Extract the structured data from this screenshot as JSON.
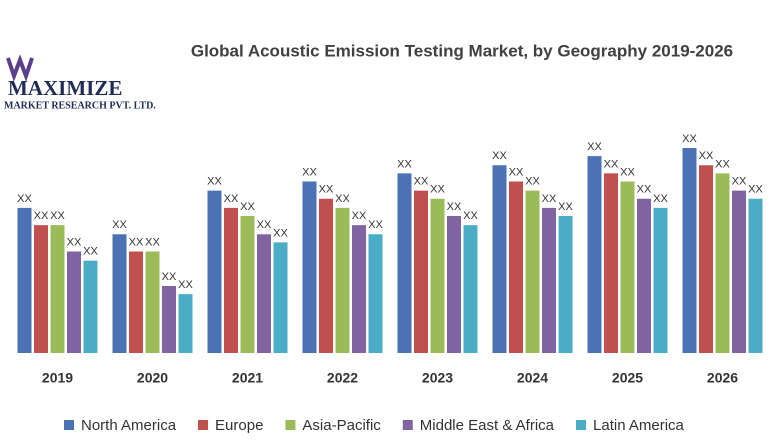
{
  "logo": {
    "name": "MAXIMIZE",
    "tagline": "MARKET RESEARCH PVT. LTD."
  },
  "chart_data": {
    "type": "bar",
    "title": "Global Acoustic Emission Testing Market, by Geography 2019-2026",
    "categories": [
      "2019",
      "2020",
      "2021",
      "2022",
      "2023",
      "2024",
      "2025",
      "2026"
    ],
    "series": [
      {
        "name": "North America",
        "color": "#4a72b5",
        "values": [
          143,
          117,
          160,
          169,
          177,
          185,
          194,
          202
        ],
        "value_labels": [
          "XX",
          "XX",
          "XX",
          "XX",
          "XX",
          "XX",
          "XX",
          "XX"
        ]
      },
      {
        "name": "Europe",
        "color": "#c0504d",
        "values": [
          126,
          100,
          143,
          152,
          160,
          169,
          177,
          185
        ],
        "value_labels": [
          "XX",
          "XX",
          "XX",
          "XX",
          "XX",
          "XX",
          "XX",
          "XX"
        ]
      },
      {
        "name": "Asia-Pacific",
        "color": "#9bbb59",
        "values": [
          126,
          100,
          135,
          143,
          152,
          160,
          169,
          177
        ],
        "value_labels": [
          "XX",
          "XX",
          "XX",
          "XX",
          "XX",
          "XX",
          "XX",
          "XX"
        ]
      },
      {
        "name": "Middle East & Africa",
        "color": "#8064a2",
        "values": [
          100,
          66,
          117,
          126,
          135,
          143,
          152,
          160
        ],
        "value_labels": [
          "XX",
          "XX",
          "XX",
          "XX",
          "XX",
          "XX",
          "XX",
          "XX"
        ]
      },
      {
        "name": "Latin America",
        "color": "#4bacc6",
        "values": [
          91,
          58,
          109,
          117,
          126,
          135,
          143,
          152
        ],
        "value_labels": [
          "XX",
          "XX",
          "XX",
          "XX",
          "XX",
          "XX",
          "XX",
          "XX"
        ]
      }
    ],
    "legend": "bottom"
  }
}
